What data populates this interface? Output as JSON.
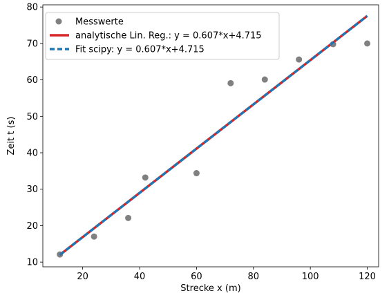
{
  "chart_data": {
    "type": "scatter",
    "xlabel": "Strecke x (m)",
    "ylabel": "Zeit t (s)",
    "xlim": [
      6,
      124
    ],
    "ylim": [
      8.7,
      80.6
    ],
    "x_ticks": [
      20,
      40,
      60,
      80,
      100,
      120
    ],
    "y_ticks": [
      10,
      20,
      30,
      40,
      50,
      60,
      70,
      80
    ],
    "grid": false,
    "legend_position": "top-left",
    "colors": {
      "points": "#808080",
      "analytic_line": "#d62728",
      "scipy_line": "#1f77b4"
    },
    "series": [
      {
        "name": "Messwerte",
        "kind": "scatter",
        "x": [
          12,
          24,
          36,
          42,
          60,
          72,
          84,
          96,
          108,
          120
        ],
        "y": [
          12.1,
          17.0,
          22.1,
          33.2,
          34.4,
          59.1,
          60.1,
          65.6,
          69.8,
          70.0
        ]
      },
      {
        "name": "analytische Lin. Reg.: y = 0.607*x+4.715",
        "kind": "line",
        "slope": 0.607,
        "intercept": 4.715,
        "x_range": [
          12,
          120
        ]
      },
      {
        "name": "Fit scipy: y = 0.607*x+4.715",
        "kind": "line-dashed",
        "slope": 0.607,
        "intercept": 4.715,
        "x_range": [
          12,
          120
        ]
      }
    ]
  }
}
